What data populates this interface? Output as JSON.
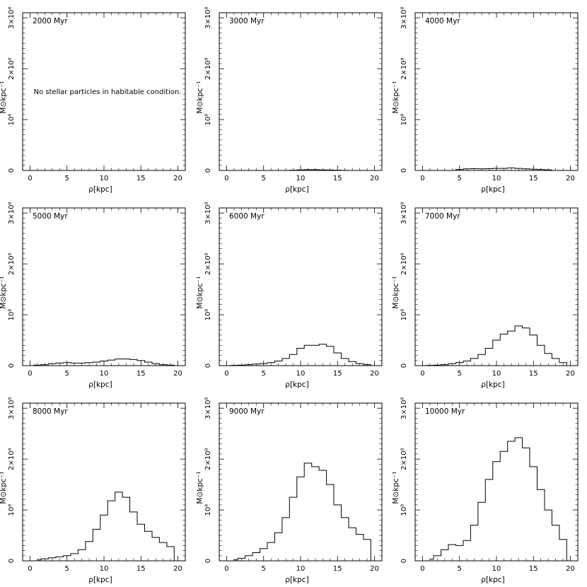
{
  "figure": {
    "ylabel": "M⊙kpc⁻¹",
    "xlabel": "ρ[kpc]"
  },
  "chart_data": [
    {
      "type": "line",
      "title": "2000 Myr",
      "xlabel": "ρ[kpc]",
      "ylabel": "M⊙kpc⁻¹",
      "xlim": [
        -1,
        21
      ],
      "ylim": [
        0,
        310000000.0
      ],
      "xticks": [
        0,
        5,
        10,
        15,
        20
      ],
      "yticks": [
        0,
        100000000.0,
        200000000.0,
        300000000.0
      ],
      "ytick_labels": [
        "0",
        "10⁸",
        "2×10⁸",
        "3×10⁸"
      ],
      "annotation": "No stellar particles in habitable condition.",
      "series": [
        {
          "x": [],
          "y": []
        }
      ]
    },
    {
      "type": "line",
      "title": "3000 Myr",
      "xlabel": "ρ[kpc]",
      "ylabel": "M⊙kpc⁻¹",
      "xlim": [
        -1,
        21
      ],
      "ylim": [
        0,
        310000000.0
      ],
      "xticks": [
        0,
        5,
        10,
        15,
        20
      ],
      "yticks": [
        0,
        100000000.0,
        200000000.0,
        300000000.0
      ],
      "ytick_labels": [
        "0",
        "10⁸",
        "2×10⁸",
        "3×10⁸"
      ],
      "series": [
        {
          "x": [
            0,
            2,
            4,
            6,
            8,
            9,
            10,
            11,
            12,
            13,
            14,
            15,
            16,
            17,
            18,
            20
          ],
          "y": [
            0,
            0,
            0,
            0,
            0,
            500000.0,
            1000000.0,
            1500000.0,
            1500000.0,
            1000000.0,
            800000.0,
            500000.0,
            200000.0,
            0,
            0,
            0
          ]
        }
      ]
    },
    {
      "type": "line",
      "title": "4000 Myr",
      "xlabel": "ρ[kpc]",
      "ylabel": "M⊙kpc⁻¹",
      "xlim": [
        -1,
        21
      ],
      "ylim": [
        0,
        310000000.0
      ],
      "xticks": [
        0,
        5,
        10,
        15,
        20
      ],
      "yticks": [
        0,
        100000000.0,
        200000000.0,
        300000000.0
      ],
      "ytick_labels": [
        "0",
        "10⁸",
        "2×10⁸",
        "3×10⁸"
      ],
      "series": [
        {
          "x": [
            0,
            4,
            5,
            6,
            7,
            8,
            9,
            10,
            11,
            12,
            13,
            14,
            15,
            16,
            17,
            18,
            20
          ],
          "y": [
            0,
            0,
            2000000.0,
            3000000.0,
            3500000.0,
            3000000.0,
            3500000.0,
            4000000.0,
            4000000.0,
            5000000.0,
            4000000.0,
            3000000.0,
            2500000.0,
            2000000.0,
            1000000.0,
            0,
            0
          ]
        }
      ]
    },
    {
      "type": "line",
      "title": "5000 Myr",
      "xlabel": "ρ[kpc]",
      "ylabel": "M⊙kpc⁻¹",
      "xlim": [
        -1,
        21
      ],
      "ylim": [
        0,
        310000000.0
      ],
      "xticks": [
        0,
        5,
        10,
        15,
        20
      ],
      "yticks": [
        0,
        100000000.0,
        200000000.0,
        300000000.0
      ],
      "ytick_labels": [
        "0",
        "10⁸",
        "2×10⁸",
        "3×10⁸"
      ],
      "series": [
        {
          "x": [
            0,
            1,
            2,
            3,
            4,
            5,
            6,
            7,
            8,
            9,
            10,
            11,
            12,
            13,
            14,
            15,
            16,
            17,
            18,
            19,
            20
          ],
          "y": [
            0,
            1000000.0,
            2000000.0,
            4000000.0,
            5000000.0,
            6000000.0,
            5000000.0,
            5000000.0,
            6000000.0,
            7000000.0,
            9000000.0,
            11000000.0,
            13000000.0,
            13000000.0,
            12000000.0,
            10000000.0,
            7000000.0,
            4000000.0,
            2000000.0,
            1000000.0,
            0
          ]
        }
      ]
    },
    {
      "type": "line",
      "title": "6000 Myr",
      "xlabel": "ρ[kpc]",
      "ylabel": "M⊙kpc⁻¹",
      "xlim": [
        -1,
        21
      ],
      "ylim": [
        0,
        310000000.0
      ],
      "xticks": [
        0,
        5,
        10,
        15,
        20
      ],
      "yticks": [
        0,
        100000000.0,
        200000000.0,
        300000000.0
      ],
      "ytick_labels": [
        "0",
        "10⁸",
        "2×10⁸",
        "3×10⁸"
      ],
      "series": [
        {
          "x": [
            0,
            1,
            2,
            3,
            4,
            5,
            6,
            7,
            8,
            9,
            10,
            11,
            12,
            13,
            14,
            15,
            16,
            17,
            18,
            19,
            20
          ],
          "y": [
            0,
            500000.0,
            1000000.0,
            2000000.0,
            3000000.0,
            4000000.0,
            6000000.0,
            9000000.0,
            14000000.0,
            22000000.0,
            34000000.0,
            40000000.0,
            40000000.0,
            42000000.0,
            38000000.0,
            25000000.0,
            14000000.0,
            8000000.0,
            4000000.0,
            2000000.0,
            0
          ]
        }
      ]
    },
    {
      "type": "line",
      "title": "7000 Myr",
      "xlabel": "ρ[kpc]",
      "ylabel": "M⊙kpc⁻¹",
      "xlim": [
        -1,
        21
      ],
      "ylim": [
        0,
        310000000.0
      ],
      "xticks": [
        0,
        5,
        10,
        15,
        20
      ],
      "yticks": [
        0,
        100000000.0,
        200000000.0,
        300000000.0
      ],
      "ytick_labels": [
        "0",
        "10⁸",
        "2×10⁸",
        "3×10⁸"
      ],
      "series": [
        {
          "x": [
            0,
            1,
            2,
            3,
            4,
            5,
            6,
            7,
            8,
            9,
            10,
            11,
            12,
            13,
            14,
            15,
            16,
            17,
            18,
            19,
            20
          ],
          "y": [
            0,
            500000.0,
            1000000.0,
            2000000.0,
            4000000.0,
            6000000.0,
            9000000.0,
            14000000.0,
            22000000.0,
            34000000.0,
            50000000.0,
            62000000.0,
            68000000.0,
            78000000.0,
            74000000.0,
            60000000.0,
            40000000.0,
            24000000.0,
            14000000.0,
            6000000.0,
            0
          ]
        }
      ]
    },
    {
      "type": "line",
      "title": "8000 Myr",
      "xlabel": "ρ[kpc]",
      "ylabel": "M⊙kpc⁻¹",
      "xlim": [
        -1,
        21
      ],
      "ylim": [
        0,
        310000000.0
      ],
      "xticks": [
        0,
        5,
        10,
        15,
        20
      ],
      "yticks": [
        0,
        100000000.0,
        200000000.0,
        300000000.0
      ],
      "ytick_labels": [
        "0",
        "10⁸",
        "2×10⁸",
        "3×10⁸"
      ],
      "series": [
        {
          "x": [
            1,
            2,
            3,
            4,
            5,
            6,
            7,
            8,
            9,
            10,
            11,
            12,
            13,
            14,
            15,
            16,
            17,
            18,
            19,
            20
          ],
          "y": [
            2000000.0,
            4000000.0,
            6000000.0,
            8000000.0,
            10000000.0,
            14000000.0,
            22000000.0,
            38000000.0,
            62000000.0,
            90000000.0,
            118000000.0,
            135000000.0,
            125000000.0,
            96000000.0,
            72000000.0,
            58000000.0,
            46000000.0,
            36000000.0,
            28000000.0,
            0
          ]
        }
      ]
    },
    {
      "type": "line",
      "title": "9000 Myr",
      "xlabel": "ρ[kpc]",
      "ylabel": "M⊙kpc⁻¹",
      "xlim": [
        -1,
        21
      ],
      "ylim": [
        0,
        310000000.0
      ],
      "xticks": [
        0,
        5,
        10,
        15,
        20
      ],
      "yticks": [
        0,
        100000000.0,
        200000000.0,
        300000000.0
      ],
      "ytick_labels": [
        "0",
        "10⁸",
        "2×10⁸",
        "3×10⁸"
      ],
      "series": [
        {
          "x": [
            1,
            2,
            3,
            4,
            5,
            6,
            7,
            8,
            9,
            10,
            11,
            12,
            13,
            14,
            15,
            16,
            17,
            18,
            19,
            20
          ],
          "y": [
            2000000.0,
            5000000.0,
            10000000.0,
            16000000.0,
            24000000.0,
            36000000.0,
            55000000.0,
            85000000.0,
            125000000.0,
            165000000.0,
            192000000.0,
            185000000.0,
            178000000.0,
            150000000.0,
            110000000.0,
            85000000.0,
            65000000.0,
            52000000.0,
            42000000.0,
            0
          ]
        }
      ]
    },
    {
      "type": "line",
      "title": "10000 Myr",
      "xlabel": "ρ[kpc]",
      "ylabel": "M⊙kpc⁻¹",
      "xlim": [
        -1,
        21
      ],
      "ylim": [
        0,
        310000000.0
      ],
      "xticks": [
        0,
        5,
        10,
        15,
        20
      ],
      "yticks": [
        0,
        100000000.0,
        200000000.0,
        300000000.0
      ],
      "ytick_labels": [
        "0",
        "10⁸",
        "2×10⁸",
        "3×10⁸"
      ],
      "series": [
        {
          "x": [
            1,
            2,
            3,
            4,
            5,
            6,
            7,
            8,
            9,
            10,
            11,
            12,
            13,
            14,
            15,
            16,
            17,
            18,
            19,
            20
          ],
          "y": [
            3000000.0,
            10000000.0,
            22000000.0,
            32000000.0,
            30000000.0,
            40000000.0,
            70000000.0,
            115000000.0,
            160000000.0,
            195000000.0,
            215000000.0,
            235000000.0,
            242000000.0,
            222000000.0,
            185000000.0,
            140000000.0,
            100000000.0,
            70000000.0,
            42000000.0,
            0
          ]
        }
      ]
    }
  ]
}
